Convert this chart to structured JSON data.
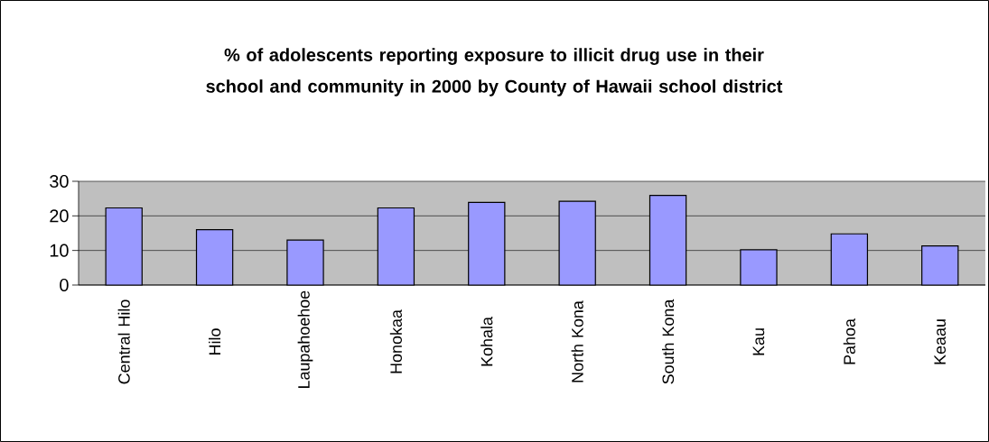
{
  "chart_data": {
    "type": "bar",
    "title": "% of adolescents reporting exposure to illicit drug use in their school and community in 2000 by County of Hawaii school district",
    "categories": [
      "Central Hilo",
      "Hilo",
      "Laupahoehoe",
      "Honokaa",
      "Kohala",
      "North Kona",
      "South Kona",
      "Kau",
      "Pahoa",
      "Keaau"
    ],
    "values": [
      22.3,
      16.0,
      13.0,
      22.3,
      23.9,
      24.2,
      25.9,
      10.2,
      14.8,
      11.3
    ],
    "color": "#9999ff",
    "ylim": [
      0,
      30
    ],
    "yticks": [
      0,
      10,
      20,
      30
    ],
    "grid": "y"
  }
}
